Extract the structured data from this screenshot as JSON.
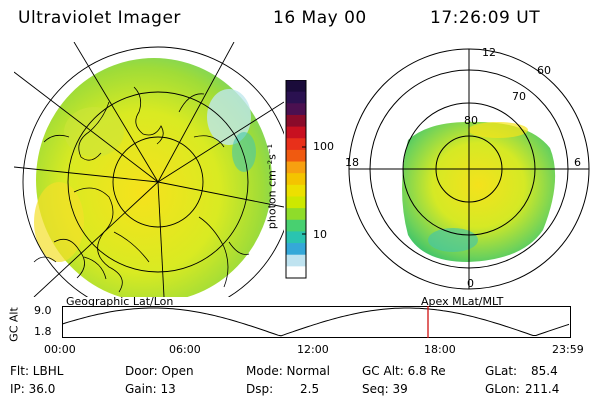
{
  "header": {
    "title": "Ultraviolet Imager",
    "date": "16 May 00",
    "time": "17:26:09 UT"
  },
  "colorbar": {
    "unit_label": "photon cm⁻²s⁻¹",
    "ticks": [
      "100",
      "10"
    ],
    "colors": [
      "#1a0b3a",
      "#2a1150",
      "#4b1050",
      "#8a0b2a",
      "#c81020",
      "#e8301a",
      "#f05a10",
      "#f7a010",
      "#f4c400",
      "#ece000",
      "#cde800",
      "#8fdc2a",
      "#48d070",
      "#2ac4b0",
      "#35a8d8",
      "#bfe3f0",
      "#ffffff"
    ]
  },
  "polar_plot": {
    "ring_labels": [
      "60",
      "70",
      "80"
    ],
    "mlt_labels": {
      "top": "12",
      "left": "18",
      "right": "6",
      "bottom": "0"
    }
  },
  "left_caption": "Geographic Lat/Lon",
  "right_caption": "Apex MLat/MLT",
  "timeline": {
    "ylabel": "GC Alt",
    "y_ticks": [
      "9.0",
      "1.8"
    ],
    "x_ticks": [
      "00:00",
      "06:00",
      "12:00",
      "18:00",
      "23:59"
    ],
    "marker_color": "#d01010"
  },
  "status": {
    "flt": "Flt: LBHL",
    "ip": "IP: 36.0",
    "door": "Door: Open",
    "gain": "Gain: 13",
    "mode": "Mode: Normal",
    "dsp_label": "Dsp:",
    "dsp_value": "2.5",
    "gcalt": "GC Alt: 6.8 Re",
    "seq": "Seq: 39",
    "glat_label": "GLat:",
    "glat_value": "85.4",
    "glon_label": "GLon:",
    "glon_value": "211.4"
  }
}
